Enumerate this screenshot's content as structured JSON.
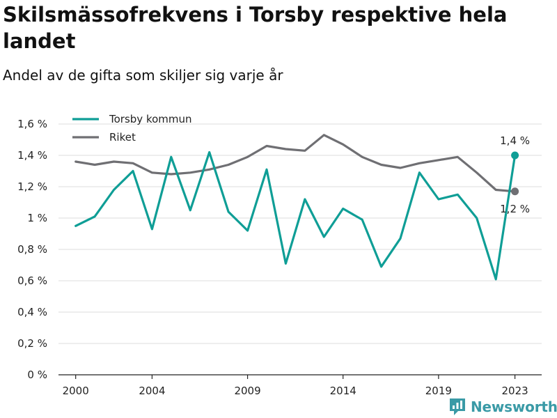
{
  "colors": {
    "torsby": "#0f9e96",
    "riket": "#6f6f73",
    "grid": "#dddddd",
    "brand": "#3a9aa6"
  },
  "brand": {
    "name": "Newsworthy",
    "icon": "newsworthy-logo-icon"
  },
  "chart_data": {
    "type": "line",
    "title": "Skilsmässofrekvens i Torsby respektive hela landet",
    "subtitle": "Andel av de gifta som skiljer sig varje år",
    "ylim": [
      0,
      1.6
    ],
    "yticks": [
      0,
      0.2,
      0.4,
      0.6,
      0.8,
      1.0,
      1.2,
      1.4,
      1.6
    ],
    "ytick_labels": [
      "0 %",
      "0,2 %",
      "0,4 %",
      "0,6 %",
      "0,8 %",
      "1 %",
      "1,2 %",
      "1,4 %",
      "1,6 %"
    ],
    "xtick_labels": [
      "2000",
      "2004",
      "2009",
      "2014",
      "2019",
      "2023"
    ],
    "grid": true,
    "legend": "top-left",
    "x": [
      2000,
      2001,
      2002,
      2003,
      2004,
      2005,
      2006,
      2007,
      2008,
      2009,
      2010,
      2011,
      2012,
      2013,
      2014,
      2015,
      2016,
      2017,
      2018,
      2019,
      2020,
      2021,
      2022,
      2023
    ],
    "series": [
      {
        "name": "Torsby kommun",
        "color": "#0f9e96",
        "values": [
          0.95,
          1.01,
          1.18,
          1.3,
          0.93,
          1.39,
          1.05,
          1.42,
          1.04,
          0.92,
          1.31,
          0.71,
          1.12,
          0.88,
          1.06,
          0.99,
          0.69,
          0.87,
          1.29,
          1.12,
          1.15,
          1.0,
          0.61,
          1.4
        ],
        "end_label": "1,4 %"
      },
      {
        "name": "Riket",
        "color": "#6f6f73",
        "values": [
          1.36,
          1.34,
          1.36,
          1.35,
          1.29,
          1.28,
          1.29,
          1.31,
          1.34,
          1.39,
          1.46,
          1.44,
          1.43,
          1.53,
          1.47,
          1.39,
          1.34,
          1.32,
          1.35,
          1.37,
          1.39,
          1.29,
          1.18,
          1.17
        ],
        "end_label": "1,2 %"
      }
    ]
  }
}
